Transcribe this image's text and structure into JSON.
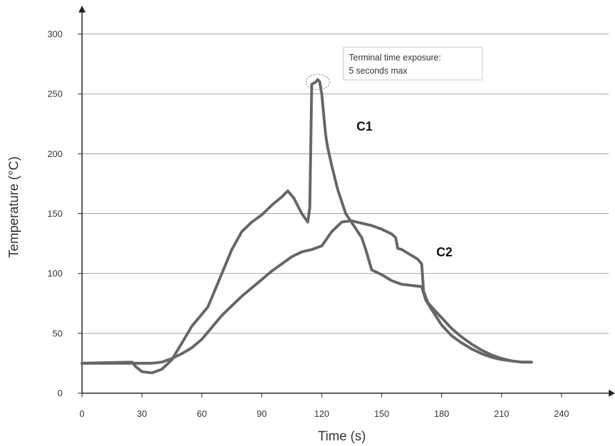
{
  "chart_data": {
    "type": "line",
    "title": "",
    "xlabel": "Time (s)",
    "ylabel": "Temperature (°C)",
    "xlim": [
      0,
      270
    ],
    "ylim": [
      0,
      320
    ],
    "xticks": [
      0,
      30,
      60,
      90,
      120,
      150,
      180,
      210,
      240
    ],
    "yticks": [
      0,
      50,
      100,
      150,
      200,
      250,
      300
    ],
    "grid": "horizontal",
    "legend": "none",
    "series": [
      {
        "name": "C1",
        "color": "#666666",
        "x": [
          0,
          25,
          27,
          30,
          35,
          40,
          45,
          50,
          55,
          60,
          63,
          65,
          70,
          75,
          80,
          85,
          90,
          95,
          100,
          103,
          106,
          110,
          113,
          114,
          115,
          116,
          117,
          118,
          119,
          120,
          121,
          122,
          123,
          125,
          128,
          132,
          136,
          140,
          142,
          145,
          150,
          155,
          160,
          165,
          170,
          172,
          175,
          180,
          185,
          190,
          195,
          200,
          205,
          210,
          215,
          220,
          225
        ],
        "y": [
          25,
          26,
          22,
          18,
          17,
          20,
          28,
          42,
          56,
          66,
          72,
          80,
          100,
          120,
          135,
          143,
          149,
          157,
          164,
          169,
          163,
          150,
          143,
          155,
          258,
          259,
          260,
          262,
          260,
          250,
          232,
          215,
          205,
          190,
          170,
          150,
          140,
          130,
          120,
          103,
          99,
          94,
          91,
          90,
          89,
          78,
          70,
          57,
          48,
          42,
          37,
          33,
          30,
          28,
          27,
          26,
          26
        ]
      },
      {
        "name": "C2",
        "color": "#666666",
        "x": [
          0,
          25,
          30,
          35,
          40,
          45,
          50,
          55,
          60,
          65,
          70,
          75,
          80,
          85,
          90,
          95,
          100,
          105,
          110,
          115,
          120,
          125,
          130,
          135,
          140,
          145,
          150,
          155,
          157,
          158,
          160,
          165,
          168,
          170,
          171,
          173,
          175,
          180,
          185,
          190,
          195,
          200,
          205,
          210,
          215,
          220,
          225
        ],
        "y": [
          25,
          25,
          25,
          25,
          26,
          29,
          33,
          38,
          45,
          55,
          65,
          73,
          81,
          88,
          95,
          102,
          108,
          114,
          118,
          120,
          123,
          135,
          143,
          144,
          142,
          140,
          137,
          133,
          130,
          121,
          120,
          115,
          112,
          108,
          85,
          76,
          72,
          63,
          54,
          47,
          41,
          36,
          32,
          29,
          27,
          26,
          26
        ]
      }
    ],
    "annotations": [
      {
        "text_lines": [
          "Terminal time exposure:",
          "5 seconds max"
        ],
        "x": 150,
        "y": 284
      }
    ],
    "highlight": {
      "x": 118,
      "y": 260
    }
  }
}
